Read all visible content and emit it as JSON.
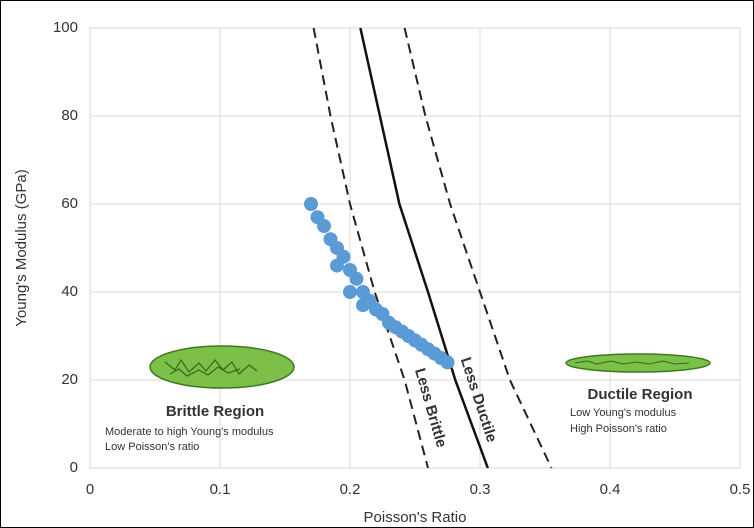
{
  "chart_data": {
    "type": "scatter",
    "xlabel": "Poisson's Ratio",
    "ylabel": "Young's Modulus (GPa)",
    "xlim": [
      0,
      0.5
    ],
    "ylim": [
      0,
      100
    ],
    "xticks": [
      0,
      0.1,
      0.2,
      0.3,
      0.4,
      0.5
    ],
    "yticks": [
      0,
      20,
      40,
      60,
      80,
      100
    ],
    "grid": true,
    "series": [
      {
        "style": "dashed",
        "color": "#222222",
        "x": [
          0.172,
          0.185,
          0.2,
          0.219,
          0.242,
          0.26
        ],
        "y": [
          100,
          80,
          60,
          40,
          20,
          0
        ]
      },
      {
        "style": "solid",
        "color": "#111111",
        "x": [
          0.208,
          0.223,
          0.238,
          0.26,
          0.281,
          0.306
        ],
        "y": [
          100,
          80,
          60,
          40,
          20,
          0
        ]
      },
      {
        "style": "dashed",
        "color": "#222222",
        "x": [
          0.242,
          0.258,
          0.277,
          0.3,
          0.323,
          0.355
        ],
        "y": [
          100,
          80,
          60,
          40,
          20,
          0
        ]
      },
      {
        "style": "markers",
        "color": "#5b9bd5",
        "x": [
          0.17,
          0.175,
          0.18,
          0.185,
          0.19,
          0.19,
          0.195,
          0.2,
          0.2,
          0.205,
          0.21,
          0.21,
          0.215,
          0.22,
          0.225,
          0.23,
          0.235,
          0.24,
          0.245,
          0.25,
          0.255,
          0.26,
          0.265,
          0.27,
          0.275
        ],
        "y": [
          60,
          57,
          55,
          52,
          50,
          46,
          48,
          45,
          40,
          43,
          40,
          37,
          38,
          36,
          35,
          33,
          32,
          31,
          30,
          29,
          28,
          27,
          26,
          25,
          24
        ]
      }
    ],
    "annotations": [
      {
        "text": "Brittle Region"
      },
      {
        "text": "Moderate to high Young's modulus"
      },
      {
        "text": "Low Poisson's ratio"
      },
      {
        "text": "Ductile Region"
      },
      {
        "text": "Low Young's modulus"
      },
      {
        "text": "High Poisson's ratio"
      },
      {
        "text": "Less Brittle"
      },
      {
        "text": "Less Ductile"
      }
    ]
  }
}
